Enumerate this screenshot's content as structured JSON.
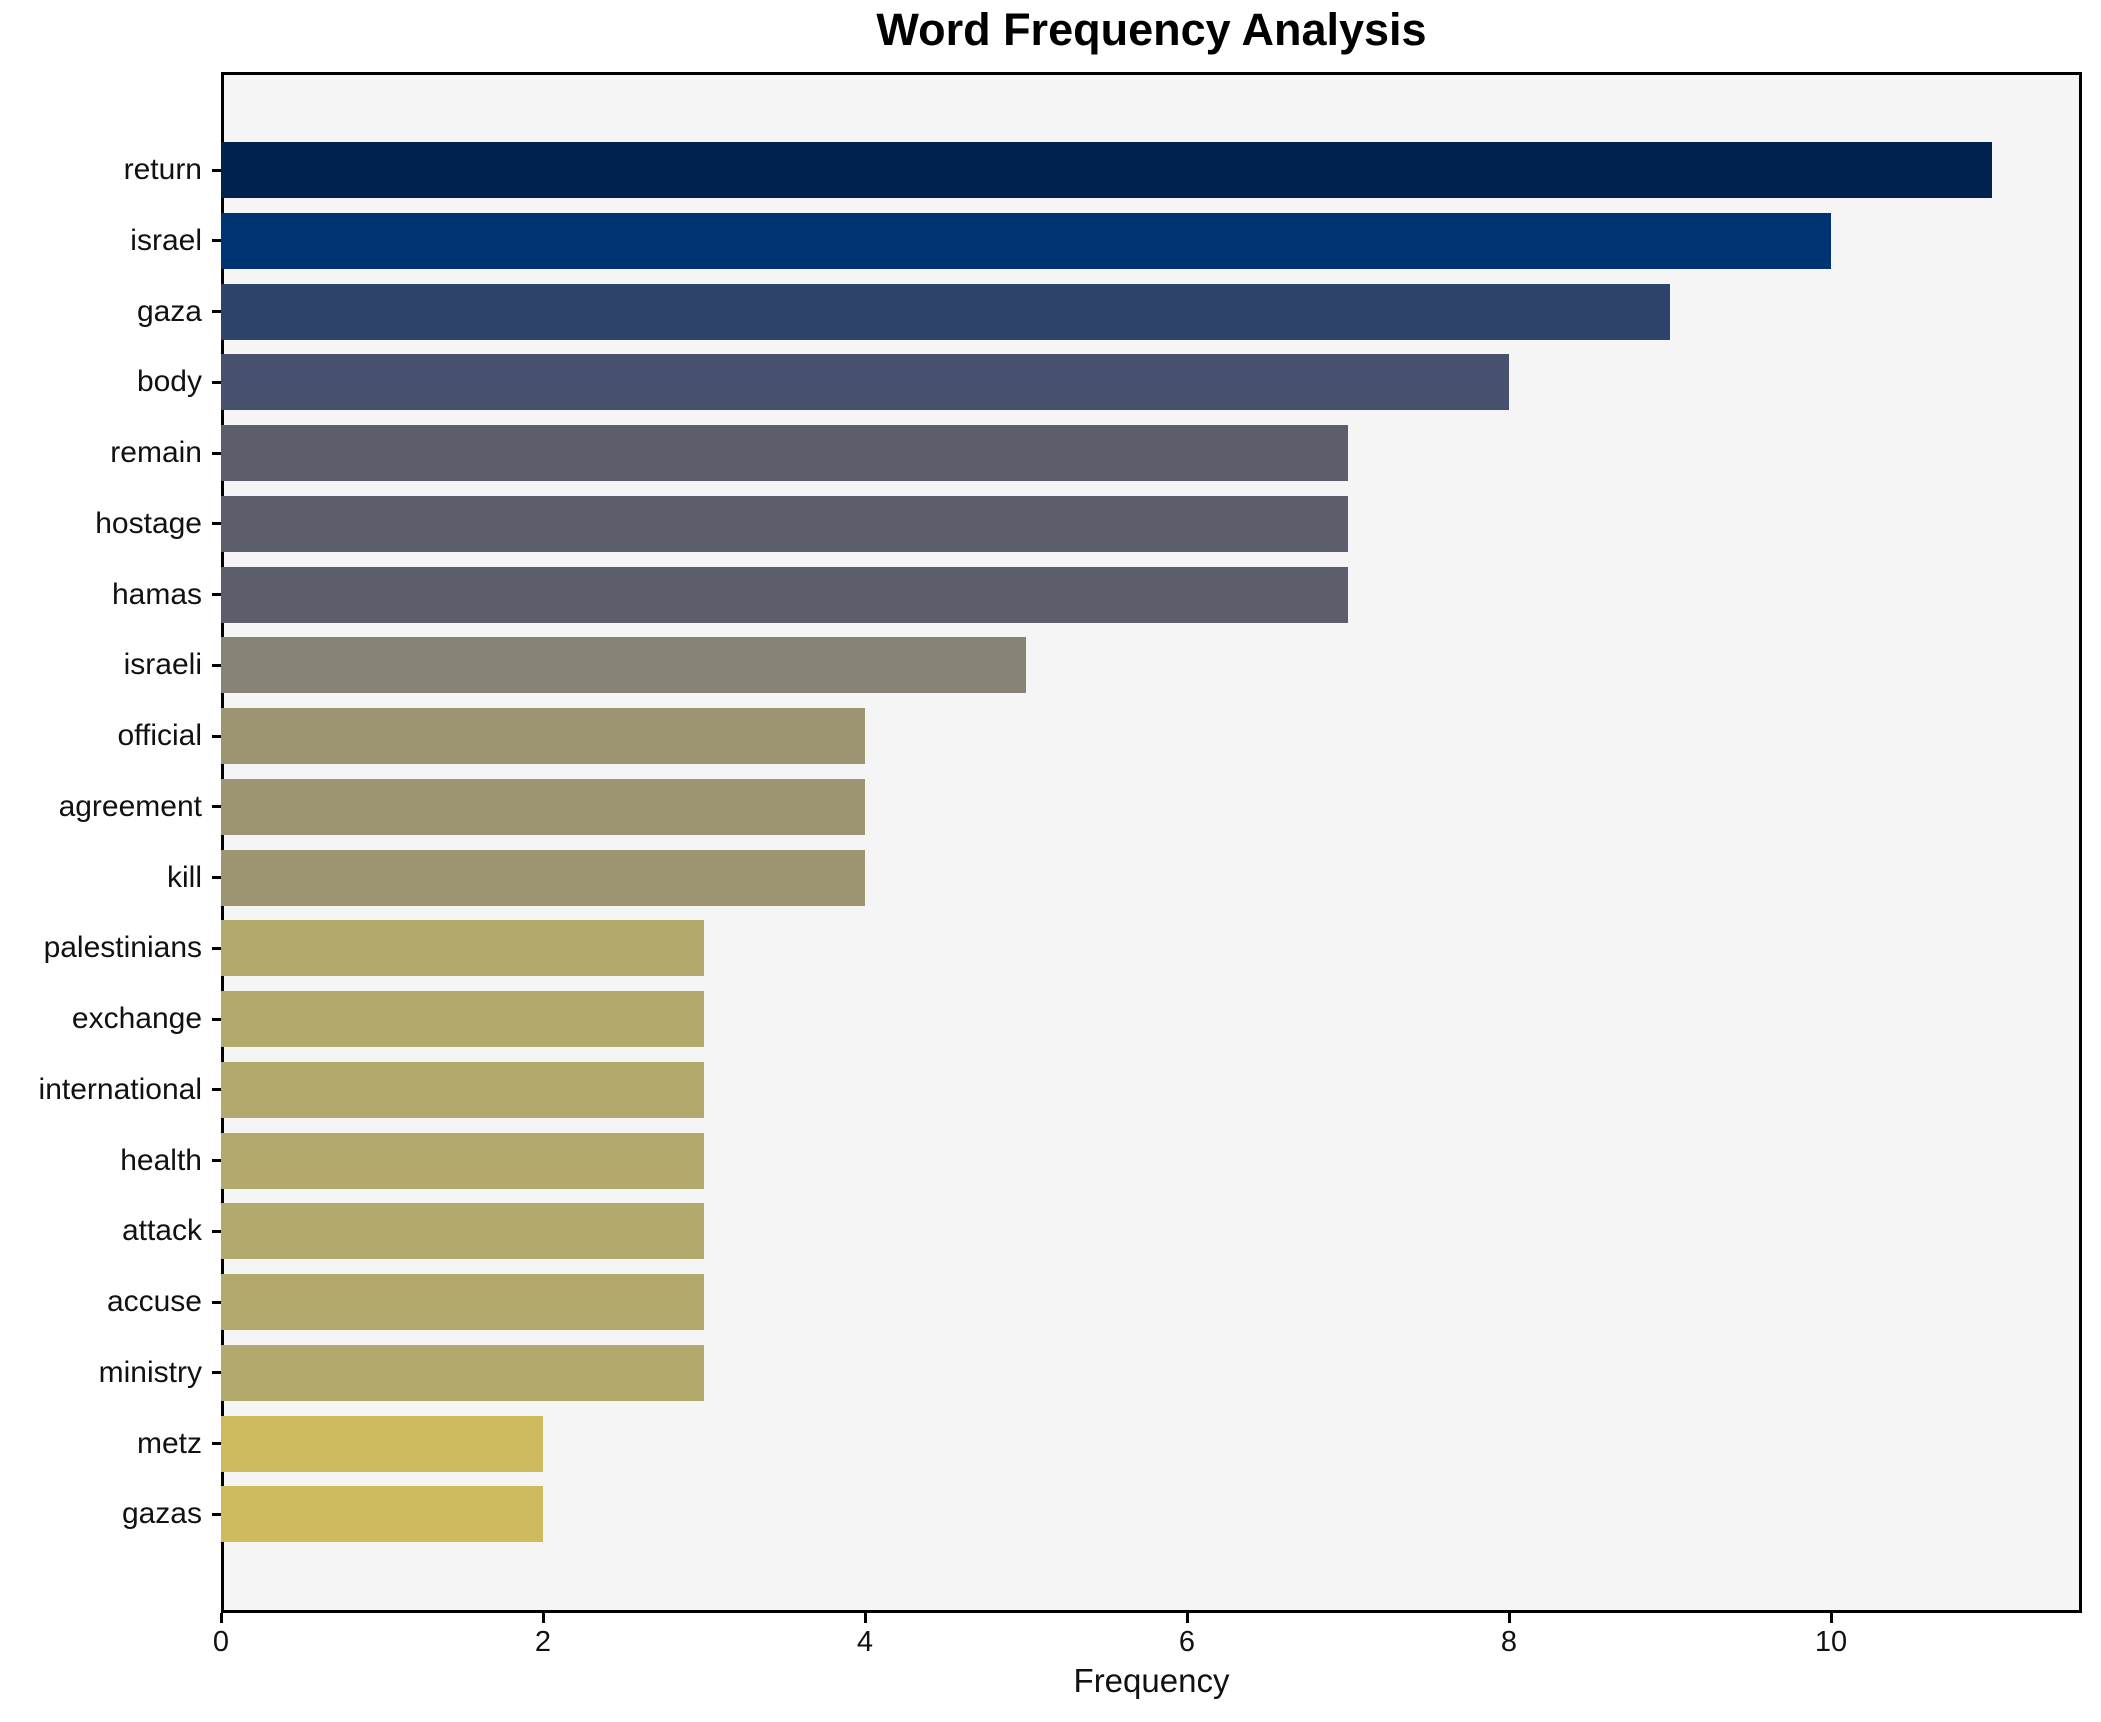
{
  "chart_data": {
    "type": "bar",
    "orientation": "horizontal",
    "title": "Word Frequency Analysis",
    "xlabel": "Frequency",
    "ylabel": "",
    "categories": [
      "return",
      "israel",
      "gaza",
      "body",
      "remain",
      "hostage",
      "hamas",
      "israeli",
      "official",
      "agreement",
      "kill",
      "palestinians",
      "exchange",
      "international",
      "health",
      "attack",
      "accuse",
      "ministry",
      "metz",
      "gazas"
    ],
    "values": [
      11,
      10,
      9,
      8,
      7,
      7,
      7,
      5,
      4,
      4,
      4,
      3,
      3,
      3,
      3,
      3,
      3,
      3,
      2,
      2
    ],
    "bar_colors": [
      "#01224e",
      "#003371",
      "#2e436b",
      "#47506c",
      "#5c5f6b",
      "#5c5f6b",
      "#5c5f6b",
      "#878477",
      "#9d9571",
      "#9d9571",
      "#9d9571",
      "#b2aa6c",
      "#b2aa6c",
      "#b2aa6c",
      "#b2aa6c",
      "#b2aa6c",
      "#b2aa6c",
      "#b2aa6c",
      "#cdbb5e",
      "#cdbb5e"
    ],
    "xticks": [
      0,
      2,
      4,
      6,
      8,
      10
    ],
    "xlim": [
      0,
      11.55
    ],
    "grid": false,
    "legend_position": "none",
    "plot_background": "#f5f5f6",
    "figure_background": "#ffffff"
  }
}
